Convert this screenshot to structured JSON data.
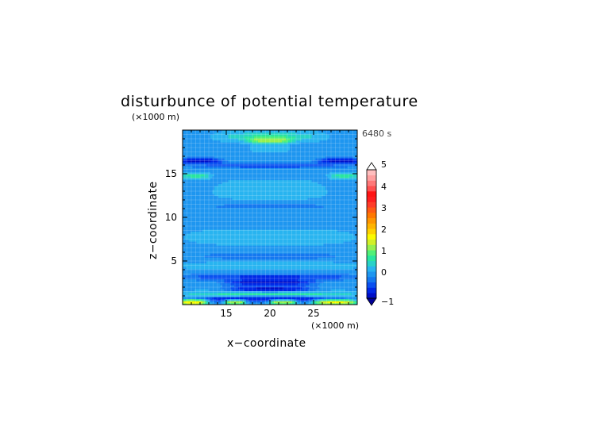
{
  "chart_data": {
    "type": "heatmap",
    "title": "disturbunce of potential temperature",
    "xlabel": "x−coordinate",
    "ylabel": "z−coordinate",
    "x_unit": "(×1000 m)",
    "y_unit": "(×1000 m)",
    "time_label": "6480 s",
    "xlim": [
      10,
      30
    ],
    "ylim": [
      0,
      20
    ],
    "x_ticks": [
      {
        "value": 15,
        "label": "15"
      },
      {
        "value": 20,
        "label": "20"
      },
      {
        "value": 25,
        "label": "25"
      }
    ],
    "y_ticks": [
      {
        "value": 5,
        "label": "5"
      },
      {
        "value": 10,
        "label": "10"
      },
      {
        "value": 15,
        "label": "15"
      }
    ],
    "grid": true,
    "colorbar": {
      "min": -1,
      "max": 5,
      "step": 0.25,
      "tick_labels": [
        {
          "value": 5,
          "label": "5"
        },
        {
          "value": 4,
          "label": "4"
        },
        {
          "value": 3,
          "label": "3"
        },
        {
          "value": 2,
          "label": "2"
        },
        {
          "value": 1,
          "label": "1"
        },
        {
          "value": 0,
          "label": "0"
        },
        {
          "value": -1,
          "label": "−1"
        }
      ],
      "colors": [
        "#000fc8",
        "#0028e6",
        "#0a50f0",
        "#1478f0",
        "#1e96f0",
        "#28b4f0",
        "#28d2c8",
        "#28e6a0",
        "#50f078",
        "#96f050",
        "#d2f028",
        "#fafa00",
        "#ffd200",
        "#ffb400",
        "#ff9600",
        "#ff7800",
        "#ff5a14",
        "#ff3c28",
        "#ff1e1e",
        "#ff1414",
        "#ff5050",
        "#ff7878",
        "#ffa0a0",
        "#ffbebe"
      ]
    },
    "field_features": [
      {
        "type": "band",
        "z_center": 19.3,
        "z_halfwidth": 0.5,
        "x_center": 20,
        "x_halfwidth": 5.5,
        "value": 0.75
      },
      {
        "type": "band",
        "z_center": 18.9,
        "z_halfwidth": 0.35,
        "x_center": 20,
        "x_halfwidth": 2.5,
        "value": 1.5
      },
      {
        "type": "band",
        "z_center": 17.9,
        "z_halfwidth": 0.35,
        "x_center": 20,
        "x_halfwidth": 2.0,
        "value": 0.5
      },
      {
        "type": "band",
        "z_center": 16.5,
        "z_halfwidth": 0.35,
        "x_center": 12,
        "x_halfwidth": 2.5,
        "value": -0.9
      },
      {
        "type": "band",
        "z_center": 16.5,
        "z_halfwidth": 0.35,
        "x_center": 28,
        "x_halfwidth": 2.5,
        "value": -0.9
      },
      {
        "type": "band",
        "z_center": 16.0,
        "z_halfwidth": 0.4,
        "x_center": 20,
        "x_halfwidth": 9.0,
        "value": -0.4
      },
      {
        "type": "band",
        "z_center": 14.8,
        "z_halfwidth": 0.3,
        "x_center": 11.5,
        "x_halfwidth": 1.6,
        "value": 0.9
      },
      {
        "type": "band",
        "z_center": 14.8,
        "z_halfwidth": 0.3,
        "x_center": 28.5,
        "x_halfwidth": 1.6,
        "value": 0.9
      },
      {
        "type": "band",
        "z_center": 13.0,
        "z_halfwidth": 1.2,
        "x_center": 20,
        "x_halfwidth": 6.0,
        "value": 0.4
      },
      {
        "type": "band",
        "z_center": 11.3,
        "z_halfwidth": 0.6,
        "x_center": 20,
        "x_halfwidth": 9.0,
        "value": -0.05
      },
      {
        "type": "band",
        "z_center": 7.8,
        "z_halfwidth": 0.8,
        "x_center": 20,
        "x_halfwidth": 9.0,
        "value": 0.4
      },
      {
        "type": "band",
        "z_center": 5.6,
        "z_halfwidth": 0.5,
        "x_center": 20,
        "x_halfwidth": 9.5,
        "value": -0.1
      },
      {
        "type": "band",
        "z_center": 4.5,
        "z_halfwidth": 0.4,
        "x_center": 20,
        "x_halfwidth": 9.5,
        "value": 0.45
      },
      {
        "type": "band",
        "z_center": 3.2,
        "z_halfwidth": 0.4,
        "x_center": 20,
        "x_halfwidth": 10.0,
        "value": -0.55
      },
      {
        "type": "band",
        "z_center": 2.6,
        "z_halfwidth": 0.3,
        "x_center": 20,
        "x_halfwidth": 5.0,
        "value": -0.95
      },
      {
        "type": "band",
        "z_center": 1.8,
        "z_halfwidth": 0.5,
        "x_center": 20,
        "x_halfwidth": 5.0,
        "value": -0.85
      },
      {
        "type": "band",
        "z_center": 1.2,
        "z_halfwidth": 0.35,
        "x_center": 20,
        "x_halfwidth": 10.0,
        "value": 0.9
      },
      {
        "type": "band",
        "z_center": 0.7,
        "z_halfwidth": 0.3,
        "x_center": 20,
        "x_halfwidth": 10.0,
        "value": -0.8
      },
      {
        "type": "band",
        "z_center": 0.3,
        "z_halfwidth": 0.35,
        "x_center": 11.2,
        "x_halfwidth": 1.6,
        "value": 2.0
      },
      {
        "type": "band",
        "z_center": 0.3,
        "z_halfwidth": 0.35,
        "x_center": 27.5,
        "x_halfwidth": 2.5,
        "value": 1.8
      },
      {
        "type": "band",
        "z_center": 0.3,
        "z_halfwidth": 0.3,
        "x_center": 16.0,
        "x_halfwidth": 1.2,
        "value": 1.5
      },
      {
        "type": "band",
        "z_center": 0.3,
        "z_halfwidth": 0.3,
        "x_center": 21.5,
        "x_halfwidth": 1.5,
        "value": 1.5
      }
    ],
    "background_value": 0.2
  }
}
